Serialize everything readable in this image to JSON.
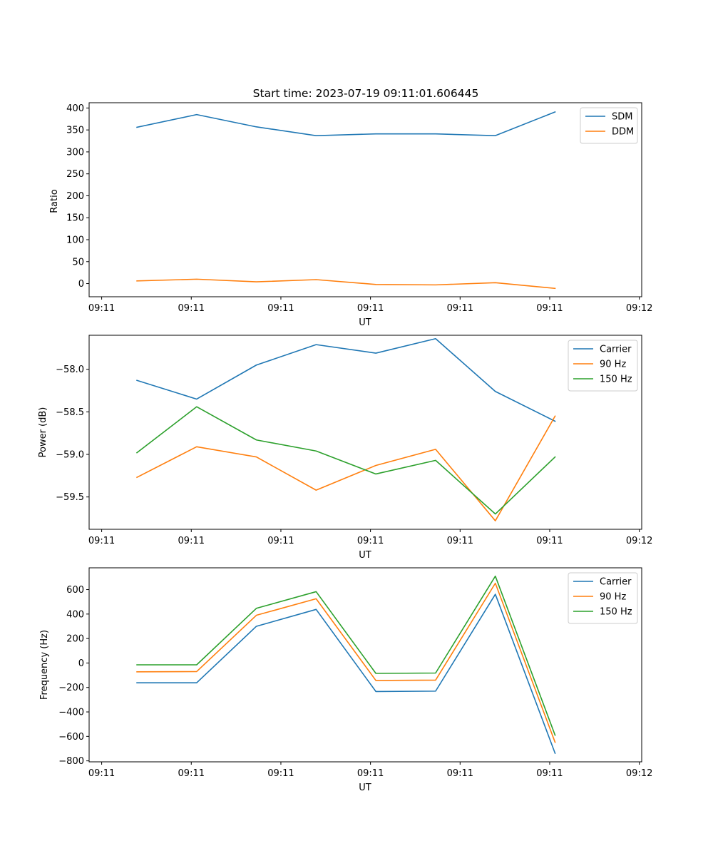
{
  "figure_title": "Start time: 2023-07-19 09:11:01.606445",
  "colors": {
    "blue": "#1f77b4",
    "orange": "#ff7f0e",
    "green": "#2ca02c"
  },
  "chart_data": [
    {
      "type": "line",
      "title": "Start time: 2023-07-19 09:11:01.606445",
      "xlabel": "UT",
      "ylabel": "Ratio",
      "x": [
        1,
        2,
        3,
        4,
        5,
        6,
        7,
        8
      ],
      "xlim": [
        0.2,
        9.45
      ],
      "x_ticks": [
        0.41,
        1.91,
        3.41,
        4.91,
        6.41,
        7.91,
        9.41
      ],
      "x_tick_labels": [
        "09:11",
        "09:11",
        "09:11",
        "09:11",
        "09:11",
        "09:11",
        "09:12"
      ],
      "ylim": [
        -30,
        412
      ],
      "y_ticks": [
        0,
        50,
        100,
        150,
        200,
        250,
        300,
        350,
        400
      ],
      "y_tick_labels": [
        "0",
        "50",
        "100",
        "150",
        "200",
        "250",
        "300",
        "350",
        "400"
      ],
      "legend_position": "top-right",
      "series": [
        {
          "name": "SDM",
          "color": "#1f77b4",
          "values": [
            356,
            385,
            357,
            337,
            341,
            341,
            337,
            391
          ]
        },
        {
          "name": "DDM",
          "color": "#ff7f0e",
          "values": [
            6,
            10,
            4,
            9,
            -2,
            -3,
            2,
            -11
          ]
        }
      ]
    },
    {
      "type": "line",
      "xlabel": "UT",
      "ylabel": "Power (dB)",
      "x": [
        1,
        2,
        3,
        4,
        5,
        6,
        7,
        8
      ],
      "xlim": [
        0.2,
        9.45
      ],
      "x_ticks": [
        0.41,
        1.91,
        3.41,
        4.91,
        6.41,
        7.91,
        9.41
      ],
      "x_tick_labels": [
        "09:11",
        "09:11",
        "09:11",
        "09:11",
        "09:11",
        "09:11",
        "09:12"
      ],
      "ylim": [
        -59.88,
        -57.6
      ],
      "y_ticks": [
        -58.0,
        -58.5,
        -59.0,
        -59.5
      ],
      "y_tick_labels": [
        "−58.0",
        "−58.5",
        "−59.0",
        "−59.5"
      ],
      "legend_position": "top-right",
      "series": [
        {
          "name": "Carrier",
          "color": "#1f77b4",
          "values": [
            -58.13,
            -58.35,
            -57.95,
            -57.71,
            -57.81,
            -57.64,
            -58.26,
            -58.61
          ]
        },
        {
          "name": "90 Hz",
          "color": "#ff7f0e",
          "values": [
            -59.27,
            -58.91,
            -59.03,
            -59.42,
            -59.13,
            -58.94,
            -59.78,
            -58.55
          ]
        },
        {
          "name": "150 Hz",
          "color": "#2ca02c",
          "values": [
            -58.98,
            -58.44,
            -58.83,
            -58.96,
            -59.23,
            -59.07,
            -59.7,
            -59.03
          ]
        }
      ]
    },
    {
      "type": "line",
      "xlabel": "UT",
      "ylabel": "Frequency (Hz)",
      "x": [
        1,
        2,
        3,
        4,
        5,
        6,
        7,
        8
      ],
      "xlim": [
        0.2,
        9.45
      ],
      "x_ticks": [
        0.41,
        1.91,
        3.41,
        4.91,
        6.41,
        7.91,
        9.41
      ],
      "x_tick_labels": [
        "09:11",
        "09:11",
        "09:11",
        "09:11",
        "09:11",
        "09:11",
        "09:12"
      ],
      "ylim": [
        -808,
        778
      ],
      "y_ticks": [
        -800,
        -600,
        -400,
        -200,
        0,
        200,
        400,
        600
      ],
      "y_tick_labels": [
        "−800",
        "−600",
        "−400",
        "−200",
        "0",
        "200",
        "400",
        "600"
      ],
      "legend_position": "top-right",
      "series": [
        {
          "name": "Carrier",
          "color": "#1f77b4",
          "values": [
            -162,
            -162,
            300,
            438,
            -233,
            -230,
            562,
            -738
          ]
        },
        {
          "name": "90 Hz",
          "color": "#ff7f0e",
          "values": [
            -72,
            -70,
            390,
            525,
            -143,
            -140,
            652,
            -648
          ]
        },
        {
          "name": "150 Hz",
          "color": "#2ca02c",
          "values": [
            -15,
            -15,
            447,
            583,
            -85,
            -82,
            710,
            -590
          ]
        }
      ]
    }
  ]
}
